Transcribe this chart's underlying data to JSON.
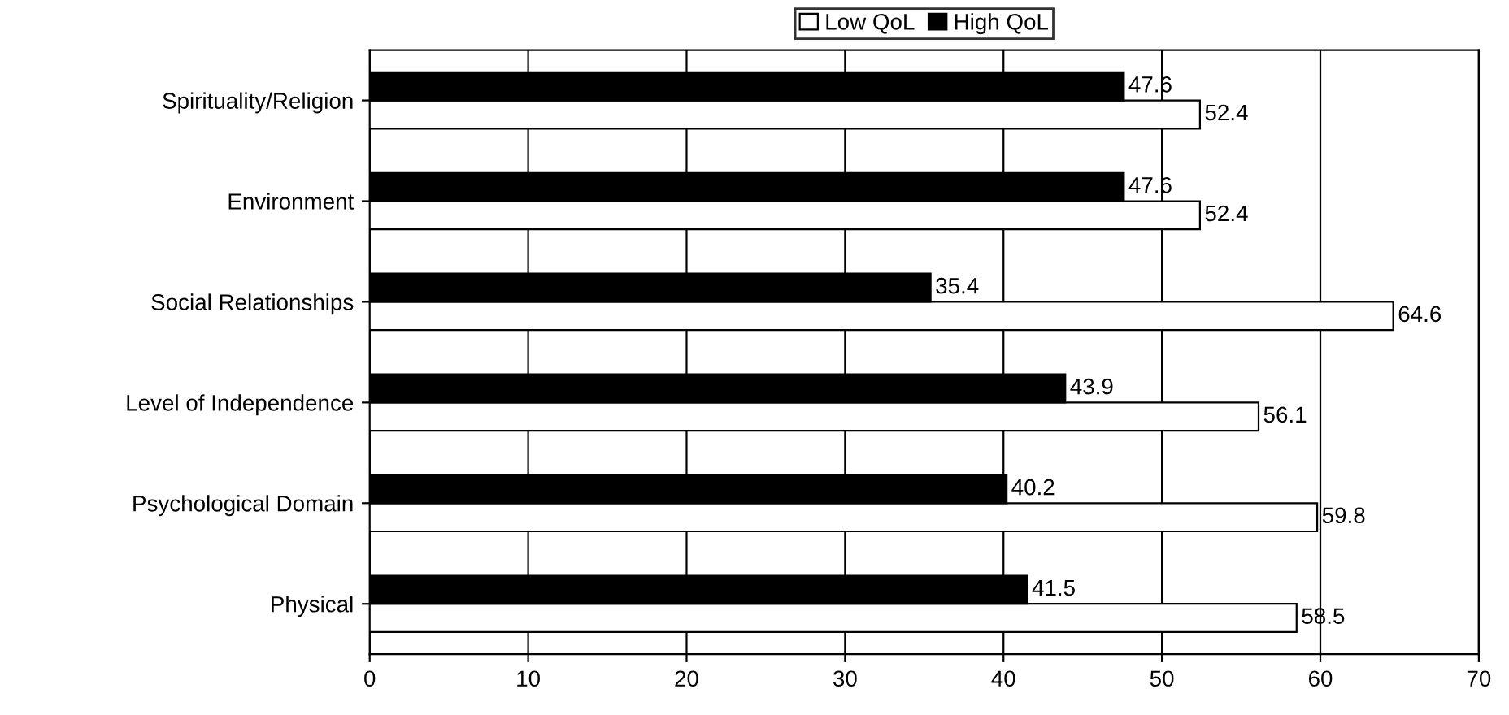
{
  "chart_data": {
    "type": "bar",
    "orientation": "horizontal",
    "categories": [
      "Spirituality/Religion",
      "Environment",
      "Social Relationships",
      "Level of Independence",
      "Psychological Domain",
      "Physical"
    ],
    "series": [
      {
        "name": "Low QoL",
        "color": "#ffffff",
        "values": [
          52.4,
          52.4,
          64.6,
          56.1,
          59.8,
          58.5
        ]
      },
      {
        "name": "High QoL",
        "color": "#000000",
        "values": [
          47.6,
          47.6,
          35.4,
          43.9,
          40.2,
          41.5
        ]
      }
    ],
    "xlim": [
      0,
      70
    ],
    "xticks": [
      0,
      10,
      20,
      30,
      40,
      50,
      60,
      70
    ],
    "grid": "x",
    "legend": "top",
    "data_labels": true
  }
}
